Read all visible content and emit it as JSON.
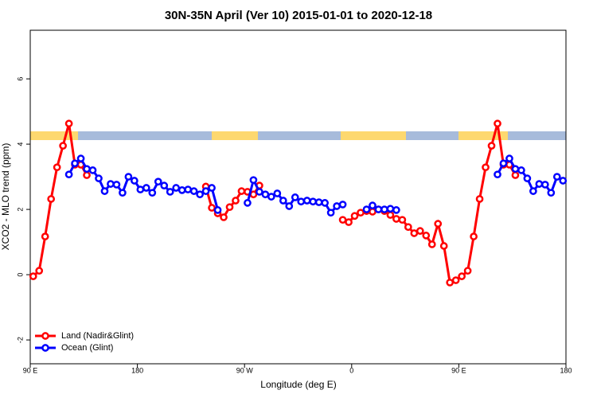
{
  "chart_data": {
    "type": "line",
    "title": "30N-35N April (Ver 10)   2015-01-01 to 2020-12-18",
    "xlabel": "Longitude (deg E)",
    "ylabel": "XCO2 - MLO trend (ppm)",
    "x": [
      92.5,
      97.5,
      102.5,
      107.5,
      112.5,
      117.5,
      122.5,
      127.5,
      132.5,
      137.5,
      142.5,
      147.5,
      152.5,
      157.5,
      162.5,
      167.5,
      172.5,
      177.5,
      182.5,
      187.5,
      192.5,
      197.5,
      202.5,
      207.5,
      212.5,
      217.5,
      222.5,
      227.5,
      232.5,
      237.5,
      242.5,
      247.5,
      252.5,
      257.5,
      262.5,
      267.5,
      272.5,
      277.5,
      282.5,
      287.5,
      292.5,
      297.5,
      302.5,
      307.5,
      312.5,
      317.5,
      322.5,
      327.5,
      332.5,
      337.5,
      342.5,
      347.5,
      352.5,
      357.5,
      362.5,
      367.5,
      372.5,
      377.5,
      382.5,
      387.5,
      392.5,
      397.5,
      402.5,
      407.5,
      412.5,
      417.5,
      422.5,
      427.5,
      432.5,
      437.5,
      442.5,
      447.5,
      452.5,
      457.5,
      462.5,
      467.5,
      472.5,
      477.5,
      482.5,
      487.5,
      492.5,
      497.5,
      502.5,
      507.5,
      512.5,
      517.5,
      522.5,
      527.5,
      532.5,
      537.5
    ],
    "series": [
      {
        "name": "Land (Nadir&Glint)",
        "color": "#ff0000",
        "values": [
          -0.05,
          0.12,
          1.17,
          2.32,
          3.29,
          3.95,
          4.63,
          3.37,
          3.37,
          3.05,
          null,
          null,
          null,
          null,
          null,
          null,
          null,
          null,
          null,
          null,
          null,
          null,
          null,
          null,
          null,
          null,
          null,
          null,
          null,
          2.7,
          2.05,
          1.88,
          1.76,
          2.07,
          2.27,
          2.56,
          2.54,
          2.46,
          2.73,
          null,
          null,
          null,
          null,
          null,
          null,
          null,
          null,
          null,
          null,
          null,
          null,
          null,
          1.68,
          1.61,
          1.8,
          1.9,
          1.95,
          1.93,
          2.0,
          1.95,
          1.83,
          1.71,
          1.68,
          1.46,
          1.27,
          1.34,
          1.2,
          0.93,
          1.56,
          0.88,
          -0.24,
          -0.17,
          -0.05,
          0.12,
          1.17,
          2.32,
          3.29,
          3.95,
          4.63,
          3.37,
          3.37,
          3.05,
          null,
          null,
          null,
          null,
          null,
          null,
          null,
          null
        ]
      },
      {
        "name": "Ocean (Glint)",
        "color": "#0000ff",
        "values": [
          null,
          null,
          null,
          null,
          null,
          null,
          3.07,
          3.41,
          3.56,
          3.24,
          3.2,
          2.95,
          2.56,
          2.78,
          2.76,
          2.51,
          3.0,
          2.88,
          2.61,
          2.66,
          2.51,
          2.85,
          2.73,
          2.54,
          2.66,
          2.59,
          2.61,
          2.56,
          2.46,
          2.56,
          2.66,
          1.98,
          null,
          null,
          null,
          null,
          2.2,
          2.9,
          2.54,
          2.46,
          2.39,
          2.49,
          2.27,
          2.1,
          2.37,
          2.24,
          2.27,
          2.24,
          2.22,
          2.2,
          1.9,
          2.1,
          2.15,
          null,
          null,
          null,
          2.0,
          2.12,
          2.0,
          2.0,
          2.02,
          1.98,
          null,
          null,
          null,
          null,
          null,
          null,
          null,
          null,
          null,
          null,
          null,
          null,
          null,
          null,
          null,
          null,
          3.07,
          3.41,
          3.56,
          3.24,
          3.2,
          2.95,
          2.56,
          2.78,
          2.76,
          2.51,
          3.0,
          2.88
        ]
      }
    ],
    "xlim": [
      90,
      540
    ],
    "xticks": [
      {
        "value": 90,
        "label": "90 E"
      },
      180,
      {
        "value": 270,
        "label": "90 W"
      },
      {
        "value": 360,
        "label": "0"
      },
      {
        "value": 450,
        "label": "90 E"
      },
      {
        "value": 540,
        "label": "180"
      }
    ],
    "ylim": [
      -2.73,
      7.49
    ],
    "yticks": [
      -2,
      0,
      2,
      4,
      6
    ],
    "legend": "bottom-left"
  }
}
